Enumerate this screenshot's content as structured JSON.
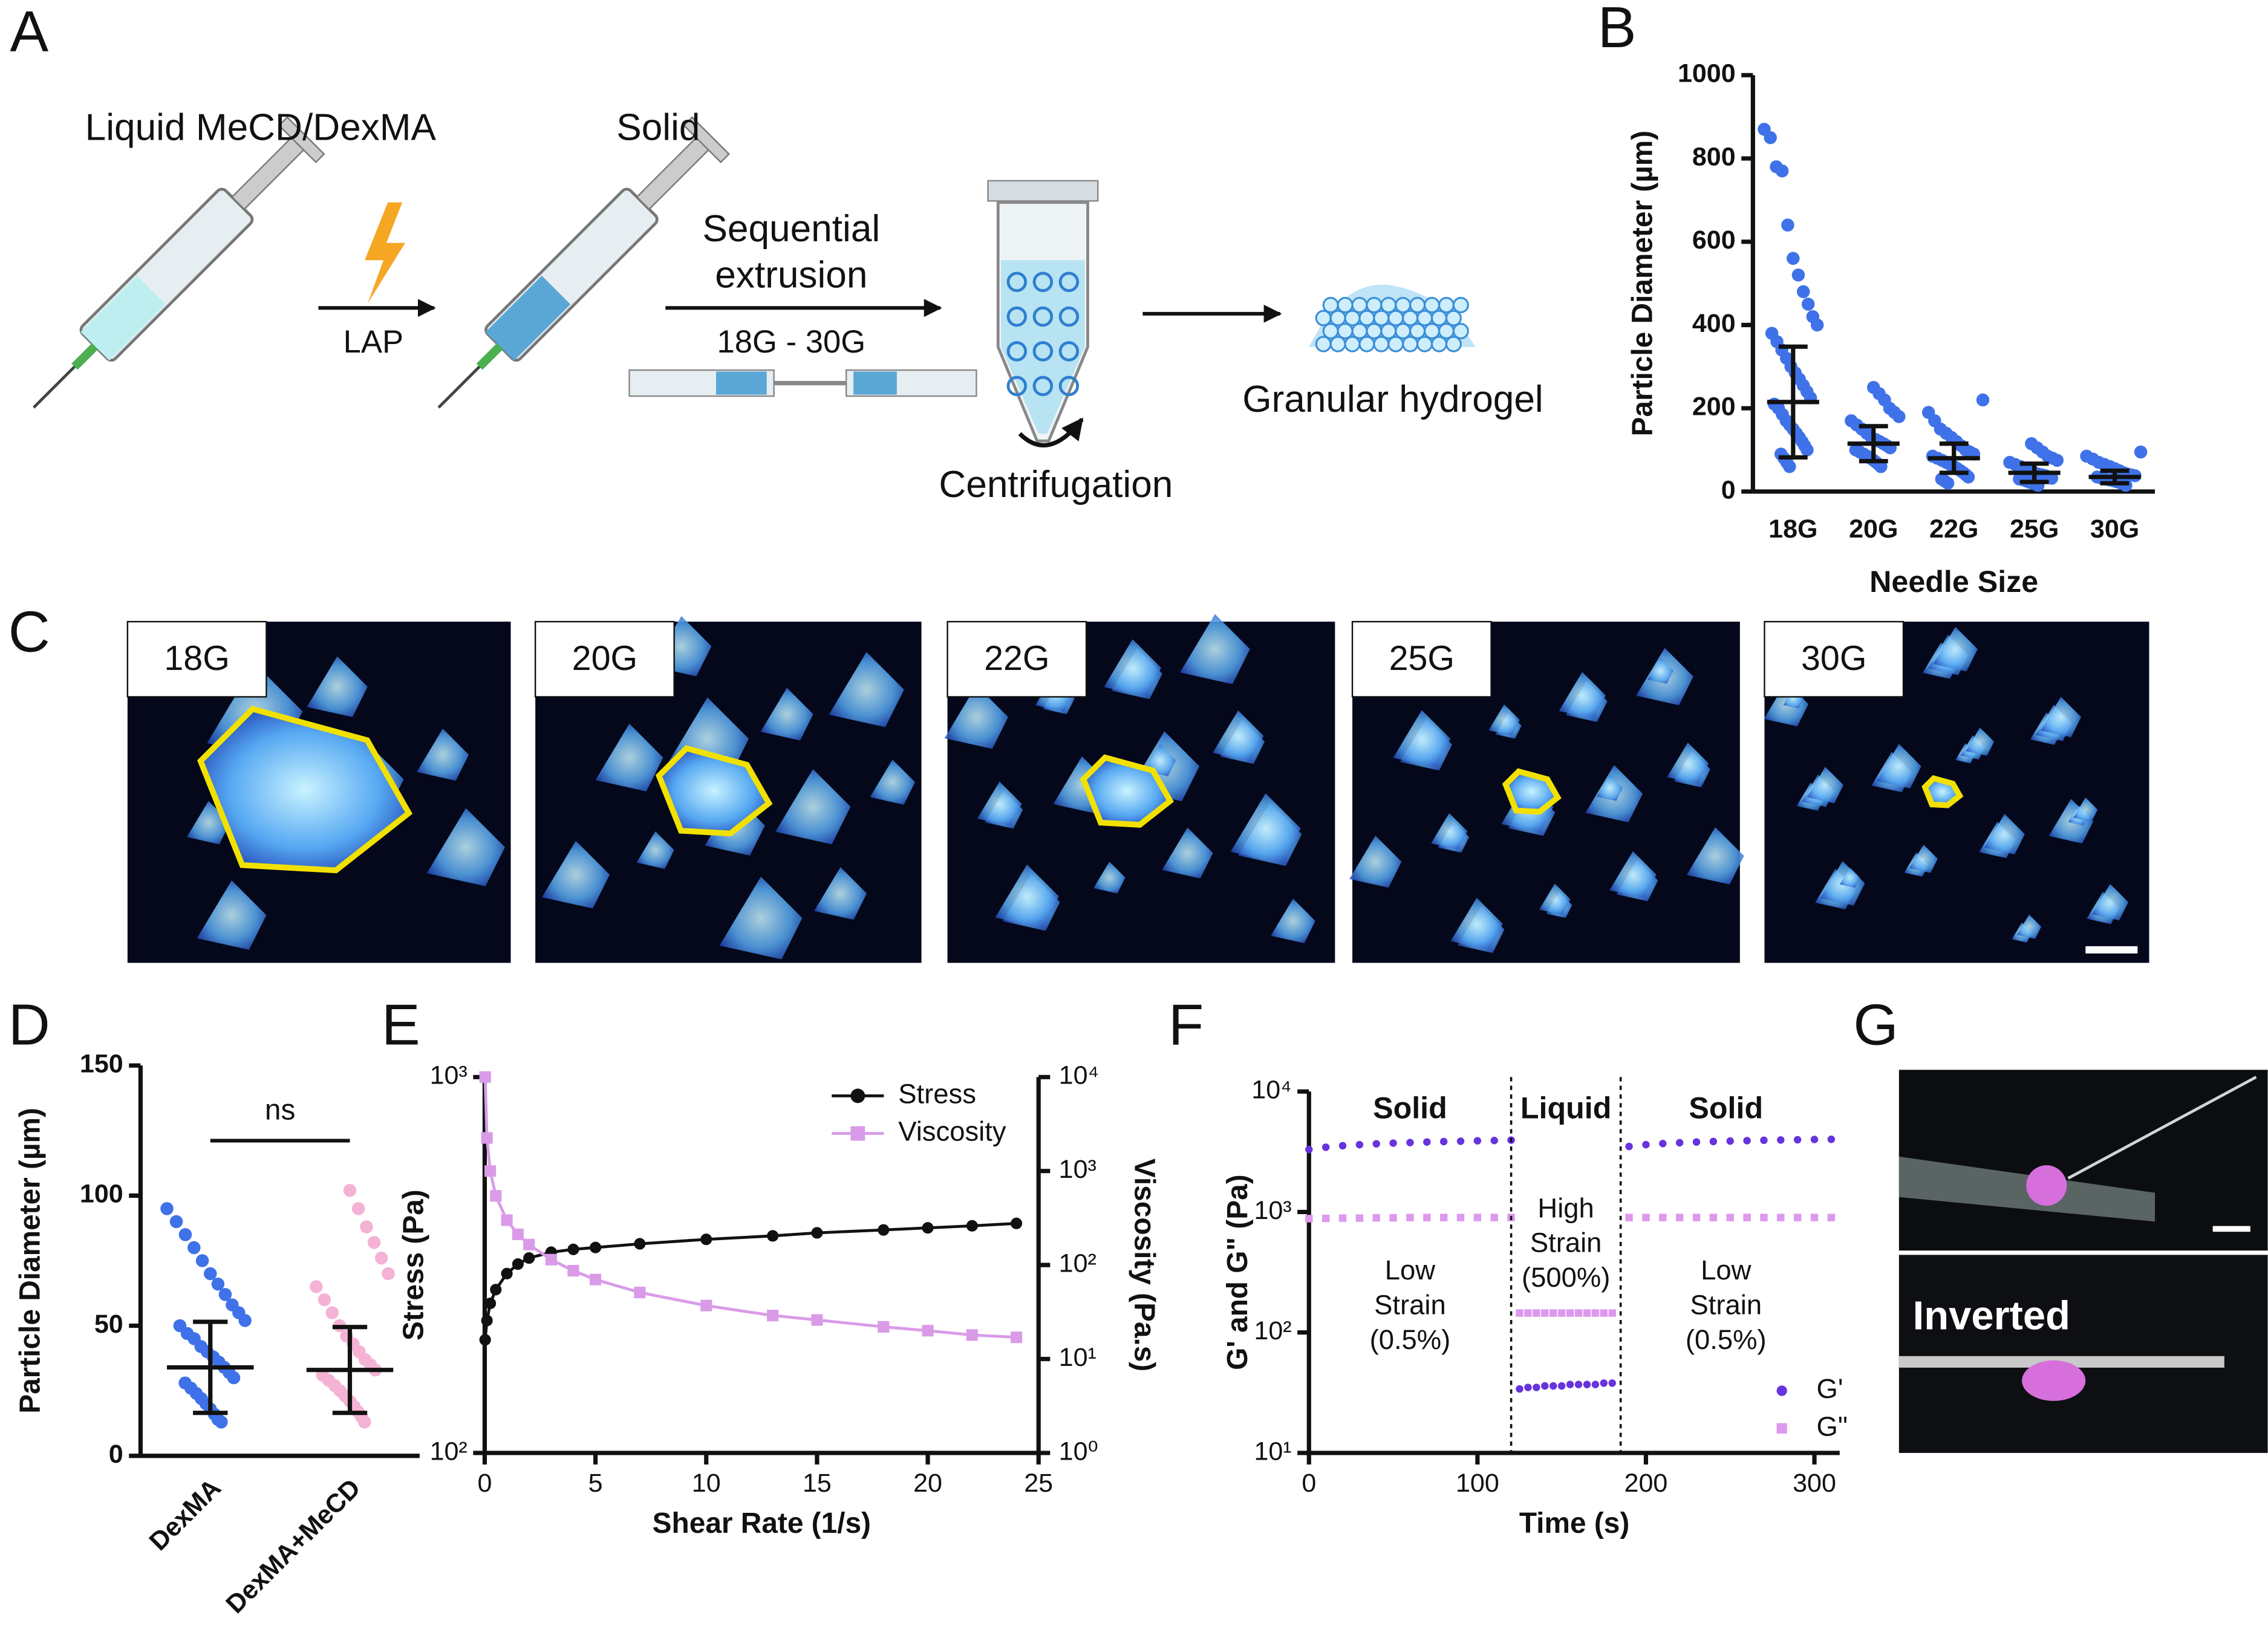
{
  "panel_labels": [
    "A",
    "B",
    "C",
    "D",
    "E",
    "F",
    "G"
  ],
  "schematic": {
    "steps": [
      "Liquid MeCD/DexMA",
      "Solid",
      "Centrifugation",
      "Granular hydrogel"
    ],
    "light_label": "LAP",
    "extrusion": [
      "Sequential",
      "extrusion"
    ],
    "needle_range": "18G - 30G"
  },
  "micrographs": {
    "labels": [
      "18G",
      "20G",
      "22G",
      "25G",
      "30G"
    ]
  },
  "photo": {
    "label": "Inverted"
  },
  "chart_data": [
    {
      "type": "dot_plot",
      "x_label": "Needle Size",
      "y_label": "Particle Diameter (µm)",
      "categories": [
        "18G",
        "20G",
        "22G",
        "25G",
        "30G"
      ],
      "points": [
        [
          870,
          850,
          780,
          770,
          640,
          560,
          520,
          480,
          450,
          420,
          400,
          380,
          360,
          340,
          320,
          300,
          285,
          270,
          255,
          240,
          225,
          210,
          200,
          185,
          170,
          160,
          150,
          140,
          130,
          120,
          110,
          100,
          90,
          80,
          70,
          60
        ],
        [
          250,
          235,
          220,
          200,
          190,
          180,
          170,
          160,
          150,
          140,
          130,
          125,
          120,
          115,
          110,
          105,
          100,
          95,
          90,
          85,
          80,
          75,
          70,
          65,
          60
        ],
        [
          220,
          190,
          170,
          150,
          140,
          130,
          120,
          110,
          100,
          95,
          90,
          85,
          80,
          75,
          70,
          65,
          60,
          55,
          50,
          45,
          40,
          35,
          30,
          25,
          20
        ],
        [
          115,
          105,
          95,
          85,
          80,
          75,
          70,
          65,
          60,
          55,
          50,
          45,
          42,
          40,
          38,
          35,
          32,
          30,
          28,
          25,
          22,
          20,
          18,
          15
        ],
        [
          95,
          85,
          78,
          70,
          65,
          60,
          55,
          50,
          45,
          42,
          40,
          38,
          35,
          32,
          30,
          28,
          26,
          24,
          22,
          20,
          18,
          15
        ]
      ],
      "means": [
        215,
        115,
        80,
        45,
        35
      ],
      "sd": [
        133,
        42,
        35,
        22,
        15
      ],
      "colors": [
        "#3f72e8",
        "#3f72e8",
        "#3f72e8",
        "#3f72e8",
        "#3f72e8"
      ],
      "ylim": [
        0,
        1000
      ],
      "yticks": [
        0,
        200,
        400,
        600,
        800,
        1000
      ]
    },
    {
      "type": "dot_plot",
      "y_label": "Particle Diameter (µm)",
      "annotation": "ns",
      "categories": [
        "DexMA",
        "DexMA+MeCD"
      ],
      "points": [
        [
          95,
          90,
          85,
          80,
          75,
          70,
          66,
          62,
          58,
          55,
          52,
          50,
          47,
          45,
          42,
          40,
          38,
          36,
          34,
          32,
          30,
          28,
          26,
          24,
          22,
          20,
          18,
          16,
          14,
          13
        ],
        [
          102,
          95,
          88,
          82,
          76,
          70,
          65,
          60,
          55,
          50,
          46,
          43,
          40,
          37,
          35,
          33,
          31,
          29,
          27,
          25,
          23,
          21,
          19,
          17,
          15,
          13
        ]
      ],
      "means": [
        34,
        33
      ],
      "sd": [
        17.5,
        16.5
      ],
      "colors": [
        "#3f72e8",
        "#f4b3d5"
      ],
      "ylim": [
        0,
        150
      ],
      "yticks": [
        0,
        50,
        100,
        150
      ]
    },
    {
      "type": "line",
      "x_label": "Shear Rate (1/s)",
      "y_label": "Stress (Pa)",
      "y2_label": "Viscosity (Pa.s)",
      "x": [
        0.02,
        0.1,
        0.25,
        0.5,
        1,
        1.5,
        2,
        3,
        4,
        5,
        7,
        10,
        13,
        15,
        18,
        20,
        22,
        24
      ],
      "series": [
        {
          "name": "Stress",
          "color": "#111111",
          "marker": "circle",
          "values": [
            200,
            225,
            250,
            272,
            300,
            318,
            330,
            342,
            348,
            352,
            360,
            370,
            378,
            385,
            392,
            397,
            402,
            408
          ]
        },
        {
          "name": "Viscosity",
          "color": "#d99be8",
          "marker": "square",
          "axis": "y2",
          "values": [
            10000,
            2250,
            1000,
            544,
            300,
            212,
            165,
            114,
            87,
            70,
            51,
            37,
            29,
            26,
            22,
            20,
            18,
            17
          ]
        }
      ],
      "xlim": [
        0,
        25
      ],
      "xticks": [
        0,
        5,
        10,
        15,
        20,
        25
      ],
      "ylim": [
        100,
        1000
      ],
      "yticks": [
        {
          "value": 100,
          "label": "10²"
        },
        {
          "value": 1000,
          "label": "10³"
        }
      ],
      "y2lim": [
        1,
        10000
      ],
      "y2ticks": [
        {
          "value": 1,
          "label": "10⁰"
        },
        {
          "value": 10,
          "label": "10¹"
        },
        {
          "value": 100,
          "label": "10²"
        },
        {
          "value": 1000,
          "label": "10³"
        },
        {
          "value": 10000,
          "label": "10⁴"
        }
      ],
      "log_scale": true,
      "legend": "top-right"
    },
    {
      "type": "scatter",
      "x_label": "Time (s)",
      "y_label": "G' and G\" (Pa)",
      "x": [
        0,
        10,
        20,
        30,
        40,
        50,
        60,
        70,
        80,
        90,
        100,
        110,
        120,
        125,
        130,
        135,
        140,
        145,
        150,
        155,
        160,
        165,
        170,
        175,
        180,
        190,
        200,
        210,
        220,
        230,
        240,
        250,
        260,
        270,
        280,
        290,
        300,
        310
      ],
      "series": [
        {
          "name": "G'",
          "color": "#6633dd",
          "marker": "circle",
          "values": [
            3300,
            3450,
            3550,
            3620,
            3680,
            3730,
            3770,
            3810,
            3840,
            3870,
            3900,
            3920,
            3950,
            34,
            35,
            35,
            36,
            36,
            36,
            37,
            37,
            37,
            37,
            38,
            38,
            3500,
            3620,
            3700,
            3760,
            3810,
            3850,
            3880,
            3910,
            3940,
            3960,
            3980,
            4000,
            4010
          ]
        },
        {
          "name": "G\"",
          "color": "#dd99ee",
          "marker": "square",
          "values": [
            880,
            885,
            890,
            890,
            895,
            895,
            900,
            900,
            900,
            900,
            900,
            900,
            900,
            145,
            145,
            145,
            145,
            145,
            145,
            145,
            145,
            145,
            145,
            145,
            145,
            900,
            900,
            900,
            900,
            900,
            900,
            900,
            900,
            900,
            900,
            900,
            900,
            900
          ]
        }
      ],
      "xlim": [
        0,
        315
      ],
      "xticks": [
        0,
        100,
        200,
        300
      ],
      "ylim": [
        10,
        10000
      ],
      "yticks": [
        {
          "value": 10,
          "label": "10¹"
        },
        {
          "value": 100,
          "label": "10²"
        },
        {
          "value": 1000,
          "label": "10³"
        },
        {
          "value": 10000,
          "label": "10⁴"
        }
      ],
      "log_scale": true,
      "phase_boundaries": [
        120,
        185
      ],
      "phases": [
        "Solid",
        "Liquid",
        "Solid"
      ],
      "strain_notes": [
        [
          "Low",
          "Strain",
          "(0.5%)"
        ],
        [
          "High",
          "Strain",
          "(500%)"
        ],
        [
          "Low",
          "Strain",
          "(0.5%)"
        ]
      ],
      "legend": "bottom-right"
    }
  ]
}
